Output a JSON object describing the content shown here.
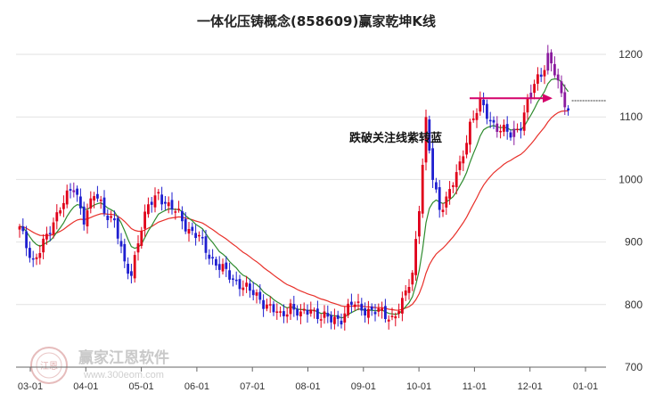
{
  "chart_data": {
    "type": "candlestick",
    "title": "一体化压铸概念(858609)赢家乾坤K线",
    "ylim": [
      700,
      1230
    ],
    "y_ticks": [
      700,
      800,
      900,
      1000,
      1100,
      1200
    ],
    "y_tick_labels": [
      "700",
      "800",
      "900",
      "1000",
      "1100",
      "1200"
    ],
    "x_tick_labels": [
      "03-01",
      "04-01",
      "05-01",
      "06-01",
      "07-01",
      "08-01",
      "09-01",
      "10-01",
      "11-01",
      "12-01",
      "01-01"
    ],
    "grid": "horizontal",
    "annotation": {
      "text": "跌破关注线紫转蓝",
      "price": 1130
    },
    "reference_level": 1126,
    "colors": {
      "up": "#e0001a",
      "down": "#1f1fd0",
      "warning": "#8a1a9e",
      "fast_line": "#2e8b2e",
      "slow_line": "#e8302a",
      "arrow": "#d4006a"
    },
    "key_points": [
      [
        0,
        920
      ],
      [
        4,
        870
      ],
      [
        8,
        905
      ],
      [
        12,
        960
      ],
      [
        16,
        985
      ],
      [
        19,
        940
      ],
      [
        22,
        975
      ],
      [
        25,
        950
      ],
      [
        28,
        935
      ],
      [
        31,
        860
      ],
      [
        33,
        850
      ],
      [
        35,
        905
      ],
      [
        38,
        955
      ],
      [
        41,
        980
      ],
      [
        44,
        955
      ],
      [
        47,
        945
      ],
      [
        50,
        920
      ],
      [
        53,
        905
      ],
      [
        56,
        880
      ],
      [
        59,
        860
      ],
      [
        62,
        845
      ],
      [
        65,
        835
      ],
      [
        68,
        820
      ],
      [
        71,
        810
      ],
      [
        74,
        795
      ],
      [
        77,
        780
      ],
      [
        80,
        800
      ],
      [
        83,
        780
      ],
      [
        86,
        795
      ],
      [
        89,
        780
      ],
      [
        92,
        775
      ],
      [
        95,
        780
      ],
      [
        98,
        800
      ],
      [
        101,
        795
      ],
      [
        104,
        790
      ],
      [
        107,
        785
      ],
      [
        110,
        780
      ],
      [
        113,
        800
      ],
      [
        116,
        850
      ],
      [
        118,
        960
      ],
      [
        120,
        1090
      ],
      [
        122,
        1000
      ],
      [
        124,
        955
      ],
      [
        127,
        980
      ],
      [
        130,
        1020
      ],
      [
        133,
        1090
      ],
      [
        136,
        1120
      ],
      [
        139,
        1095
      ],
      [
        142,
        1080
      ],
      [
        145,
        1070
      ],
      [
        148,
        1090
      ],
      [
        151,
        1140
      ],
      [
        154,
        1170
      ],
      [
        156,
        1200
      ],
      [
        158,
        1170
      ],
      [
        160,
        1130
      ],
      [
        162,
        1115
      ]
    ]
  },
  "watermark": {
    "brand": "赢家江恩软件",
    "url": "www.300eom.com",
    "logo_text": "江恩"
  }
}
